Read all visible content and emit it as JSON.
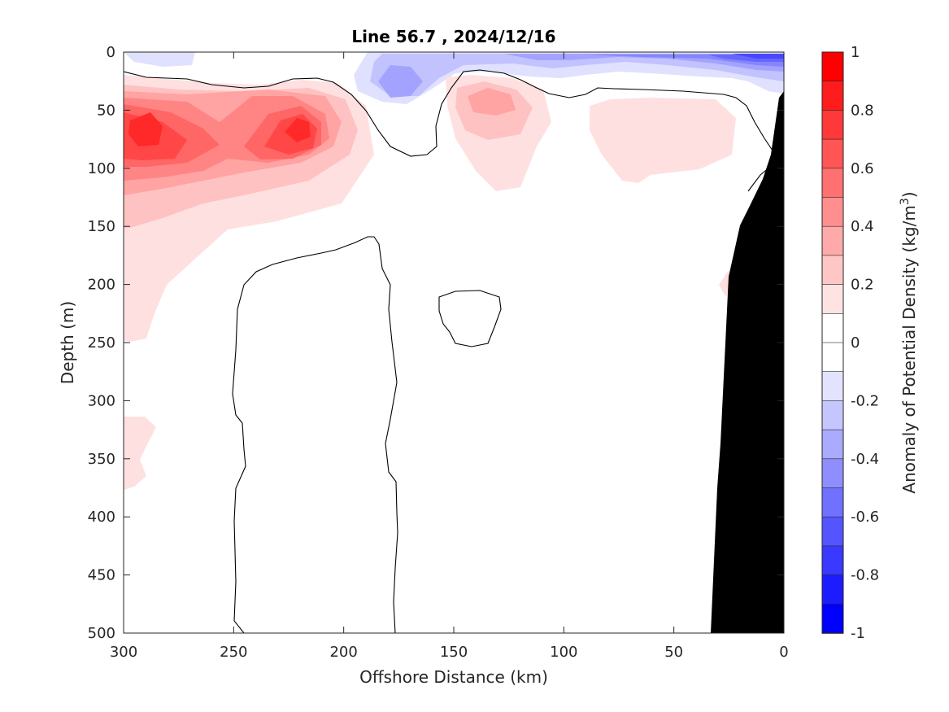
{
  "chart_data": {
    "type": "heatmap",
    "title": "Line 56.7 , 2024/12/16",
    "xlabel": "Offshore Distance (km)",
    "ylabel": "Depth (m)",
    "xlim": [
      300,
      0
    ],
    "ylim": [
      500,
      0
    ],
    "x_reversed": true,
    "y_reversed": true,
    "x_ticks": [
      300,
      250,
      200,
      150,
      100,
      50,
      0
    ],
    "y_ticks": [
      0,
      50,
      100,
      150,
      200,
      250,
      300,
      350,
      400,
      450,
      500
    ],
    "colorbar": {
      "label": "Anomaly of Potential Density (kg/m",
      "label_superscript": "3",
      "label_suffix": ")",
      "range": [
        -1,
        1
      ],
      "step": 0.1,
      "tick_values": [
        1,
        0.8,
        0.6,
        0.4,
        0.2,
        0,
        -0.2,
        -0.4,
        -0.6,
        -0.8,
        -1
      ],
      "positive_color": "#ff0000",
      "negative_color": "#0000ff",
      "neutral_color": "#ffffff"
    },
    "features": [
      {
        "kind": "positive-anomaly",
        "x_km": 290,
        "depth_m": 62,
        "value": 0.7
      },
      {
        "kind": "positive-anomaly",
        "x_km": 218,
        "depth_m": 68,
        "value": 0.7
      },
      {
        "kind": "positive-anomaly",
        "x_km": 133,
        "depth_m": 45,
        "value": 0.3
      },
      {
        "kind": "positive-anomaly",
        "x_km": 55,
        "depth_m": 75,
        "value": 0.1
      },
      {
        "kind": "positive-anomaly",
        "x_km": 292,
        "depth_m": 335,
        "value": 0.2
      },
      {
        "kind": "negative-anomaly",
        "x_km": 10,
        "depth_m": 5,
        "value": -0.6
      },
      {
        "kind": "negative-anomaly",
        "x_km": 170,
        "depth_m": 30,
        "value": -0.4
      }
    ],
    "zero_contours": 3,
    "bathymetry_color": "#000000",
    "grid": false
  }
}
